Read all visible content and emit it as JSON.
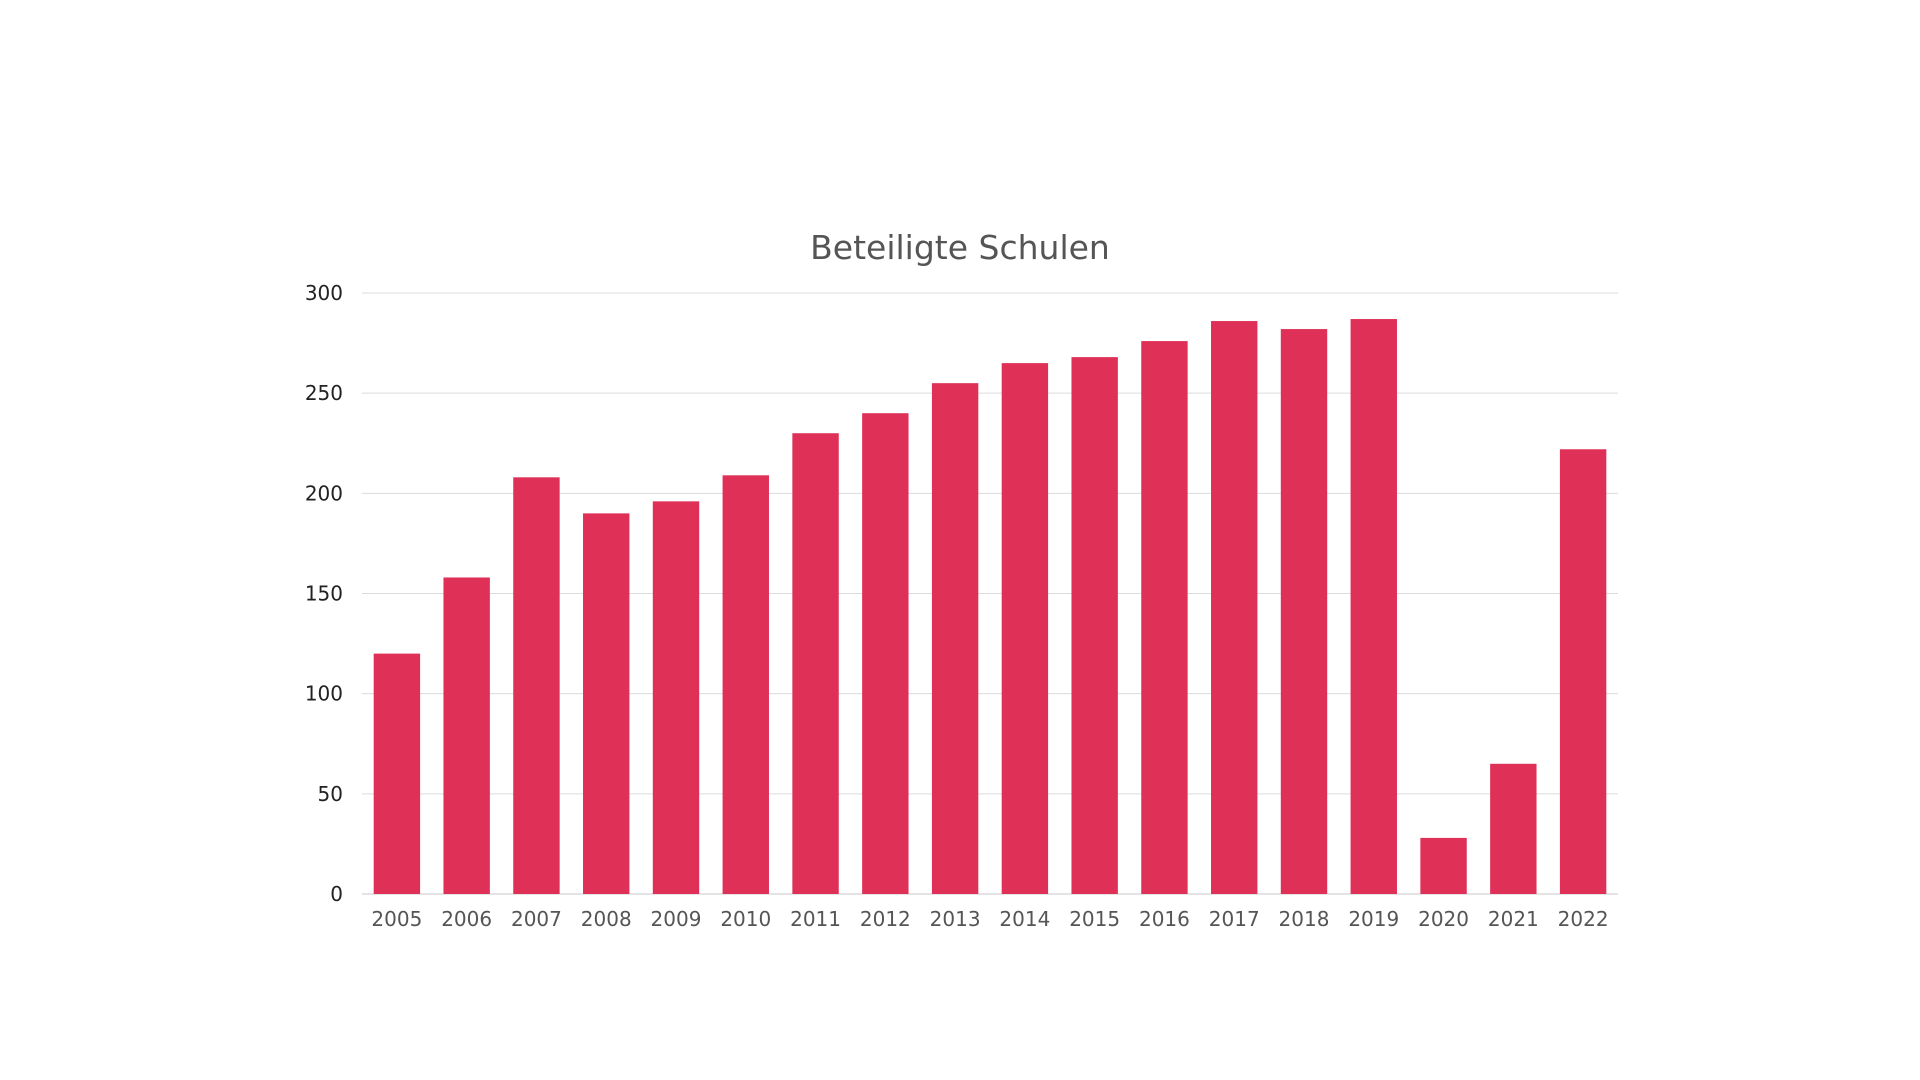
{
  "chart_data": {
    "type": "bar",
    "title": "Beteiligte Schulen",
    "xlabel": "",
    "ylabel": "",
    "categories": [
      "2005",
      "2006",
      "2007",
      "2008",
      "2009",
      "2010",
      "2011",
      "2012",
      "2013",
      "2014",
      "2015",
      "2016",
      "2017",
      "2018",
      "2019",
      "2020",
      "2021",
      "2022"
    ],
    "values": [
      120,
      158,
      208,
      190,
      196,
      209,
      230,
      240,
      255,
      265,
      268,
      276,
      286,
      282,
      287,
      28,
      65,
      222
    ],
    "ylim": [
      0,
      300
    ],
    "yticks": [
      0,
      50,
      100,
      150,
      200,
      250,
      300
    ],
    "grid": true,
    "legend": "none",
    "bar_color": "#df3158",
    "grid_color": "#dcdcdc"
  }
}
